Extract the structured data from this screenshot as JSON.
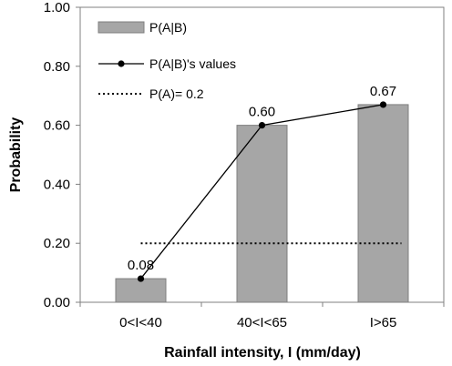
{
  "chart_data": {
    "type": "bar",
    "categories": [
      "0<I<40",
      "40<I<65",
      "I>65"
    ],
    "series": [
      {
        "name": "P(A|B)",
        "kind": "bar",
        "values": [
          0.08,
          0.6,
          0.67
        ],
        "color": "#a6a6a6"
      },
      {
        "name": "P(A|B)'s values",
        "kind": "line",
        "values": [
          0.08,
          0.6,
          0.67
        ],
        "color": "#000000"
      },
      {
        "name": "P(A)= 0.2",
        "kind": "dotted-reference",
        "value": 0.2,
        "color": "#000000"
      }
    ],
    "data_labels": [
      "0.08",
      "0.60",
      "0.67"
    ],
    "yticks": [
      "0.00",
      "0.20",
      "0.40",
      "0.60",
      "0.80",
      "1.00"
    ],
    "xlabel": "Rainfall intensity, I (mm/day)",
    "ylabel": "Probability",
    "ylim": [
      0,
      1
    ],
    "grid": false,
    "legend_position": "top-left"
  }
}
